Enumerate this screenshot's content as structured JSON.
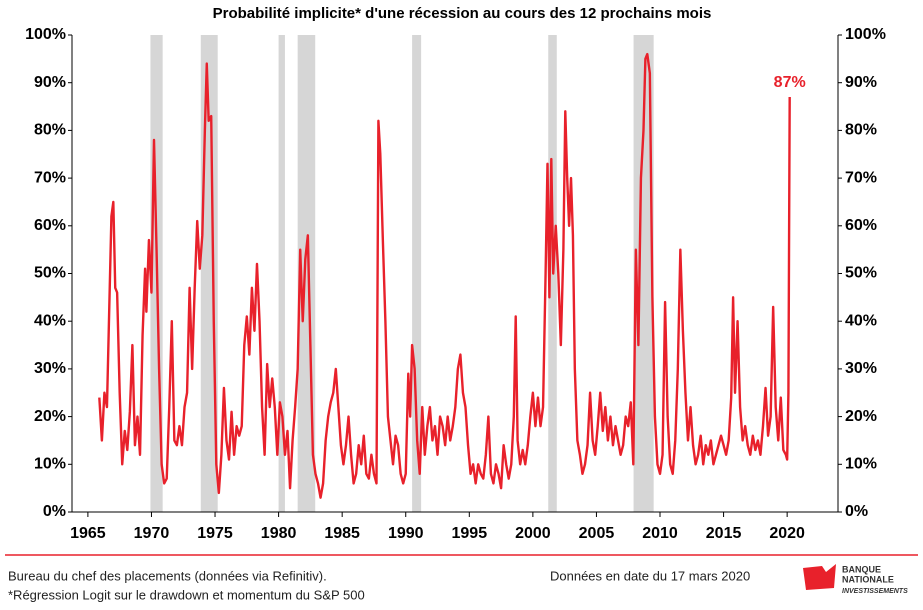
{
  "chart_data": {
    "type": "line",
    "title": "Probabilité implicite* d'une récession  au cours des 12 prochains mois",
    "annotation": "87%",
    "xlim": [
      1963.75,
      2024
    ],
    "xticks": [
      1965,
      1970,
      1975,
      1980,
      1985,
      1990,
      1995,
      2000,
      2005,
      2010,
      2015,
      2020
    ],
    "ylim": [
      0,
      100
    ],
    "yticks": [
      {
        "value": 0,
        "label": "0%"
      },
      {
        "value": 10,
        "label": "10%"
      },
      {
        "value": 20,
        "label": "20%"
      },
      {
        "value": 30,
        "label": "30%"
      },
      {
        "value": 40,
        "label": "40%"
      },
      {
        "value": 50,
        "label": "50%"
      },
      {
        "value": 60,
        "label": "60%"
      },
      {
        "value": 70,
        "label": "70%"
      },
      {
        "value": 80,
        "label": "80%"
      },
      {
        "value": 90,
        "label": "90%"
      },
      {
        "value": 100,
        "label": "100%"
      }
    ],
    "grid": false,
    "recession_color": "#d6d6d6",
    "recessions": [
      [
        1969.92,
        1970.88
      ],
      [
        1973.88,
        1975.21
      ],
      [
        1980.0,
        1980.5
      ],
      [
        1981.5,
        1982.88
      ],
      [
        1990.5,
        1991.21
      ],
      [
        2001.21,
        2001.88
      ],
      [
        2007.92,
        2009.5
      ]
    ],
    "x": [
      1965.9,
      1966.1,
      1966.3,
      1966.5,
      1966.7,
      1966.85,
      1967.0,
      1967.15,
      1967.3,
      1967.5,
      1967.7,
      1967.9,
      1968.1,
      1968.3,
      1968.5,
      1968.7,
      1968.9,
      1969.1,
      1969.3,
      1969.5,
      1969.6,
      1969.8,
      1970.0,
      1970.2,
      1970.4,
      1970.6,
      1970.8,
      1971.0,
      1971.2,
      1971.4,
      1971.6,
      1971.8,
      1972.0,
      1972.2,
      1972.4,
      1972.6,
      1972.8,
      1973.0,
      1973.2,
      1973.4,
      1973.6,
      1973.8,
      1974.0,
      1974.2,
      1974.35,
      1974.5,
      1974.7,
      1974.9,
      1975.1,
      1975.3,
      1975.5,
      1975.7,
      1975.9,
      1976.1,
      1976.3,
      1976.5,
      1976.7,
      1976.9,
      1977.1,
      1977.3,
      1977.5,
      1977.7,
      1977.9,
      1978.1,
      1978.3,
      1978.5,
      1978.7,
      1978.9,
      1979.1,
      1979.3,
      1979.5,
      1979.7,
      1979.9,
      1980.1,
      1980.3,
      1980.5,
      1980.7,
      1980.9,
      1981.1,
      1981.3,
      1981.5,
      1981.7,
      1981.9,
      1982.1,
      1982.3,
      1982.5,
      1982.7,
      1982.9,
      1983.1,
      1983.3,
      1983.5,
      1983.7,
      1983.9,
      1984.1,
      1984.3,
      1984.5,
      1984.7,
      1984.9,
      1985.1,
      1985.3,
      1985.5,
      1985.7,
      1985.9,
      1986.1,
      1986.3,
      1986.5,
      1986.7,
      1986.9,
      1987.1,
      1987.3,
      1987.5,
      1987.7,
      1987.85,
      1988.0,
      1988.2,
      1988.4,
      1988.6,
      1988.8,
      1989.0,
      1989.2,
      1989.4,
      1989.6,
      1989.8,
      1990.0,
      1990.2,
      1990.35,
      1990.5,
      1990.7,
      1990.9,
      1991.1,
      1991.3,
      1991.5,
      1991.7,
      1991.9,
      1992.1,
      1992.3,
      1992.5,
      1992.7,
      1992.9,
      1993.1,
      1993.3,
      1993.5,
      1993.7,
      1993.9,
      1994.1,
      1994.3,
      1994.5,
      1994.7,
      1994.9,
      1995.1,
      1995.3,
      1995.5,
      1995.7,
      1995.9,
      1996.1,
      1996.3,
      1996.5,
      1996.7,
      1996.9,
      1997.1,
      1997.3,
      1997.5,
      1997.7,
      1997.9,
      1998.1,
      1998.3,
      1998.5,
      1998.65,
      1998.8,
      1999.0,
      1999.2,
      1999.4,
      1999.6,
      1999.8,
      2000.0,
      2000.2,
      2000.4,
      2000.6,
      2000.8,
      2001.0,
      2001.15,
      2001.3,
      2001.45,
      2001.6,
      2001.8,
      2002.0,
      2002.2,
      2002.4,
      2002.55,
      2002.7,
      2002.85,
      2003.0,
      2003.15,
      2003.3,
      2003.5,
      2003.7,
      2003.9,
      2004.1,
      2004.3,
      2004.5,
      2004.7,
      2004.9,
      2005.1,
      2005.3,
      2005.5,
      2005.7,
      2005.9,
      2006.1,
      2006.3,
      2006.5,
      2006.7,
      2006.9,
      2007.1,
      2007.3,
      2007.5,
      2007.7,
      2007.9,
      2008.1,
      2008.3,
      2008.5,
      2008.7,
      2008.85,
      2009.0,
      2009.2,
      2009.4,
      2009.6,
      2009.8,
      2010.0,
      2010.2,
      2010.4,
      2010.6,
      2010.8,
      2011.0,
      2011.2,
      2011.4,
      2011.6,
      2011.8,
      2012.0,
      2012.2,
      2012.4,
      2012.6,
      2012.8,
      2013.0,
      2013.2,
      2013.4,
      2013.6,
      2013.8,
      2014.0,
      2014.2,
      2014.4,
      2014.6,
      2014.8,
      2015.0,
      2015.2,
      2015.4,
      2015.6,
      2015.75,
      2015.9,
      2016.1,
      2016.3,
      2016.5,
      2016.7,
      2016.9,
      2017.1,
      2017.3,
      2017.5,
      2017.7,
      2017.9,
      2018.1,
      2018.3,
      2018.5,
      2018.7,
      2018.9,
      2019.1,
      2019.3,
      2019.5,
      2019.7,
      2019.9,
      2020.0,
      2020.1,
      2020.2
    ],
    "series": [
      {
        "name": "Probabilité implicite",
        "color": "#e8212b",
        "values": [
          24,
          15,
          25,
          22,
          45,
          62,
          65,
          47,
          46,
          25,
          10,
          17,
          13,
          21,
          35,
          14,
          20,
          12,
          37,
          51,
          42,
          57,
          46,
          78,
          55,
          30,
          10,
          6,
          7,
          22,
          40,
          15,
          14,
          18,
          14,
          22,
          25,
          47,
          30,
          47,
          61,
          51,
          58,
          80,
          94,
          82,
          83,
          40,
          10,
          4,
          12,
          26,
          15,
          11,
          21,
          12,
          18,
          16,
          18,
          35,
          41,
          33,
          47,
          38,
          52,
          40,
          22,
          12,
          31,
          22,
          28,
          22,
          12,
          23,
          20,
          12,
          17,
          5,
          15,
          22,
          30,
          55,
          40,
          53,
          58,
          35,
          12,
          8,
          6,
          3,
          6,
          15,
          20,
          23,
          25,
          30,
          22,
          14,
          10,
          14,
          20,
          12,
          6,
          8,
          14,
          10,
          16,
          8,
          7,
          12,
          8,
          6,
          82,
          75,
          57,
          40,
          20,
          15,
          10,
          16,
          14,
          8,
          6,
          8,
          29,
          20,
          35,
          30,
          15,
          8,
          22,
          12,
          18,
          22,
          15,
          18,
          12,
          20,
          18,
          14,
          20,
          15,
          18,
          22,
          30,
          33,
          25,
          22,
          14,
          8,
          10,
          6,
          10,
          8,
          7,
          12,
          20,
          8,
          6,
          10,
          8,
          5,
          14,
          10,
          7,
          10,
          20,
          41,
          15,
          10,
          13,
          10,
          14,
          20,
          25,
          18,
          24,
          18,
          22,
          50,
          73,
          45,
          74,
          50,
          60,
          50,
          35,
          55,
          84,
          70,
          60,
          70,
          58,
          30,
          15,
          12,
          8,
          10,
          14,
          25,
          15,
          12,
          18,
          25,
          17,
          22,
          15,
          20,
          14,
          18,
          15,
          12,
          14,
          20,
          18,
          23,
          10,
          55,
          35,
          70,
          80,
          95,
          96,
          92,
          45,
          20,
          10,
          8,
          12,
          44,
          20,
          10,
          8,
          15,
          30,
          55,
          38,
          25,
          15,
          22,
          14,
          10,
          12,
          16,
          10,
          14,
          12,
          15,
          10,
          12,
          14,
          16,
          14,
          12,
          15,
          24,
          45,
          25,
          40,
          22,
          15,
          18,
          14,
          12,
          16,
          13,
          15,
          12,
          18,
          26,
          16,
          20,
          43,
          22,
          15,
          24,
          13,
          12,
          11,
          25,
          87
        ]
      }
    ]
  },
  "footer": {
    "source": "Bureau du chef des placements (données via Refinitiv).",
    "note": "*Régression Logit sur le drawdown et momentum du S&P 500",
    "date": "Données en date du 17 mars 2020",
    "logo_line1": "BANQUE",
    "logo_line2": "NATIONALE",
    "logo_line3": "INVESTISSEMENTS"
  }
}
